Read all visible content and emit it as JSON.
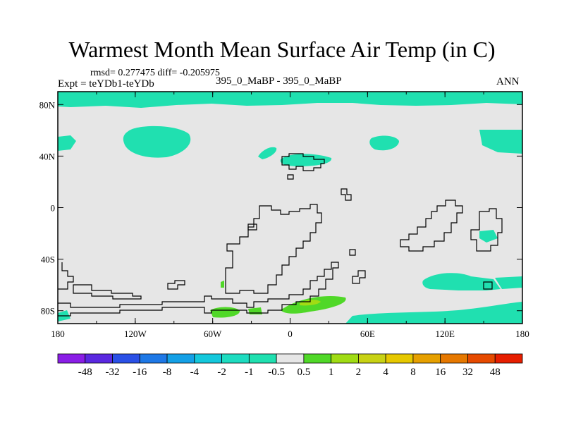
{
  "title": "Warmest Month Mean Surface Air Temp (in C)",
  "stats": "rmsd= 0.277475 diff= -0.205975",
  "expt": "Expt = teYDb1-teYDb",
  "case": "395_0_MaBP - 395_0_MaBP",
  "period": "ANN",
  "axes": {
    "x_ticks": [
      "180",
      "120W",
      "60W",
      "0",
      "60E",
      "120E",
      "180"
    ],
    "y_ticks": [
      "80N",
      "40N",
      "0",
      "40S",
      "80S"
    ]
  },
  "colorbar": {
    "labels": [
      "-48",
      "-32",
      "-16",
      "-8",
      "-4",
      "-2",
      "-1",
      "-0.5",
      "0.5",
      "1",
      "2",
      "4",
      "8",
      "16",
      "32",
      "48"
    ],
    "colors": [
      "#8a1ee6",
      "#5a28e0",
      "#2a50e6",
      "#1e78e6",
      "#14a0e6",
      "#14c8dc",
      "#1edcc0",
      "#20e0b0",
      "#e6e6e6",
      "#50d828",
      "#a0dc14",
      "#c8d214",
      "#e6c800",
      "#e6a000",
      "#e67800",
      "#e64a00",
      "#e61e00"
    ]
  },
  "map": {
    "background": "#e6e6e6",
    "anomaly_colors": {
      "-1": "#20e0b0",
      "1": "#50d828",
      "2": "#a0dc14"
    }
  }
}
